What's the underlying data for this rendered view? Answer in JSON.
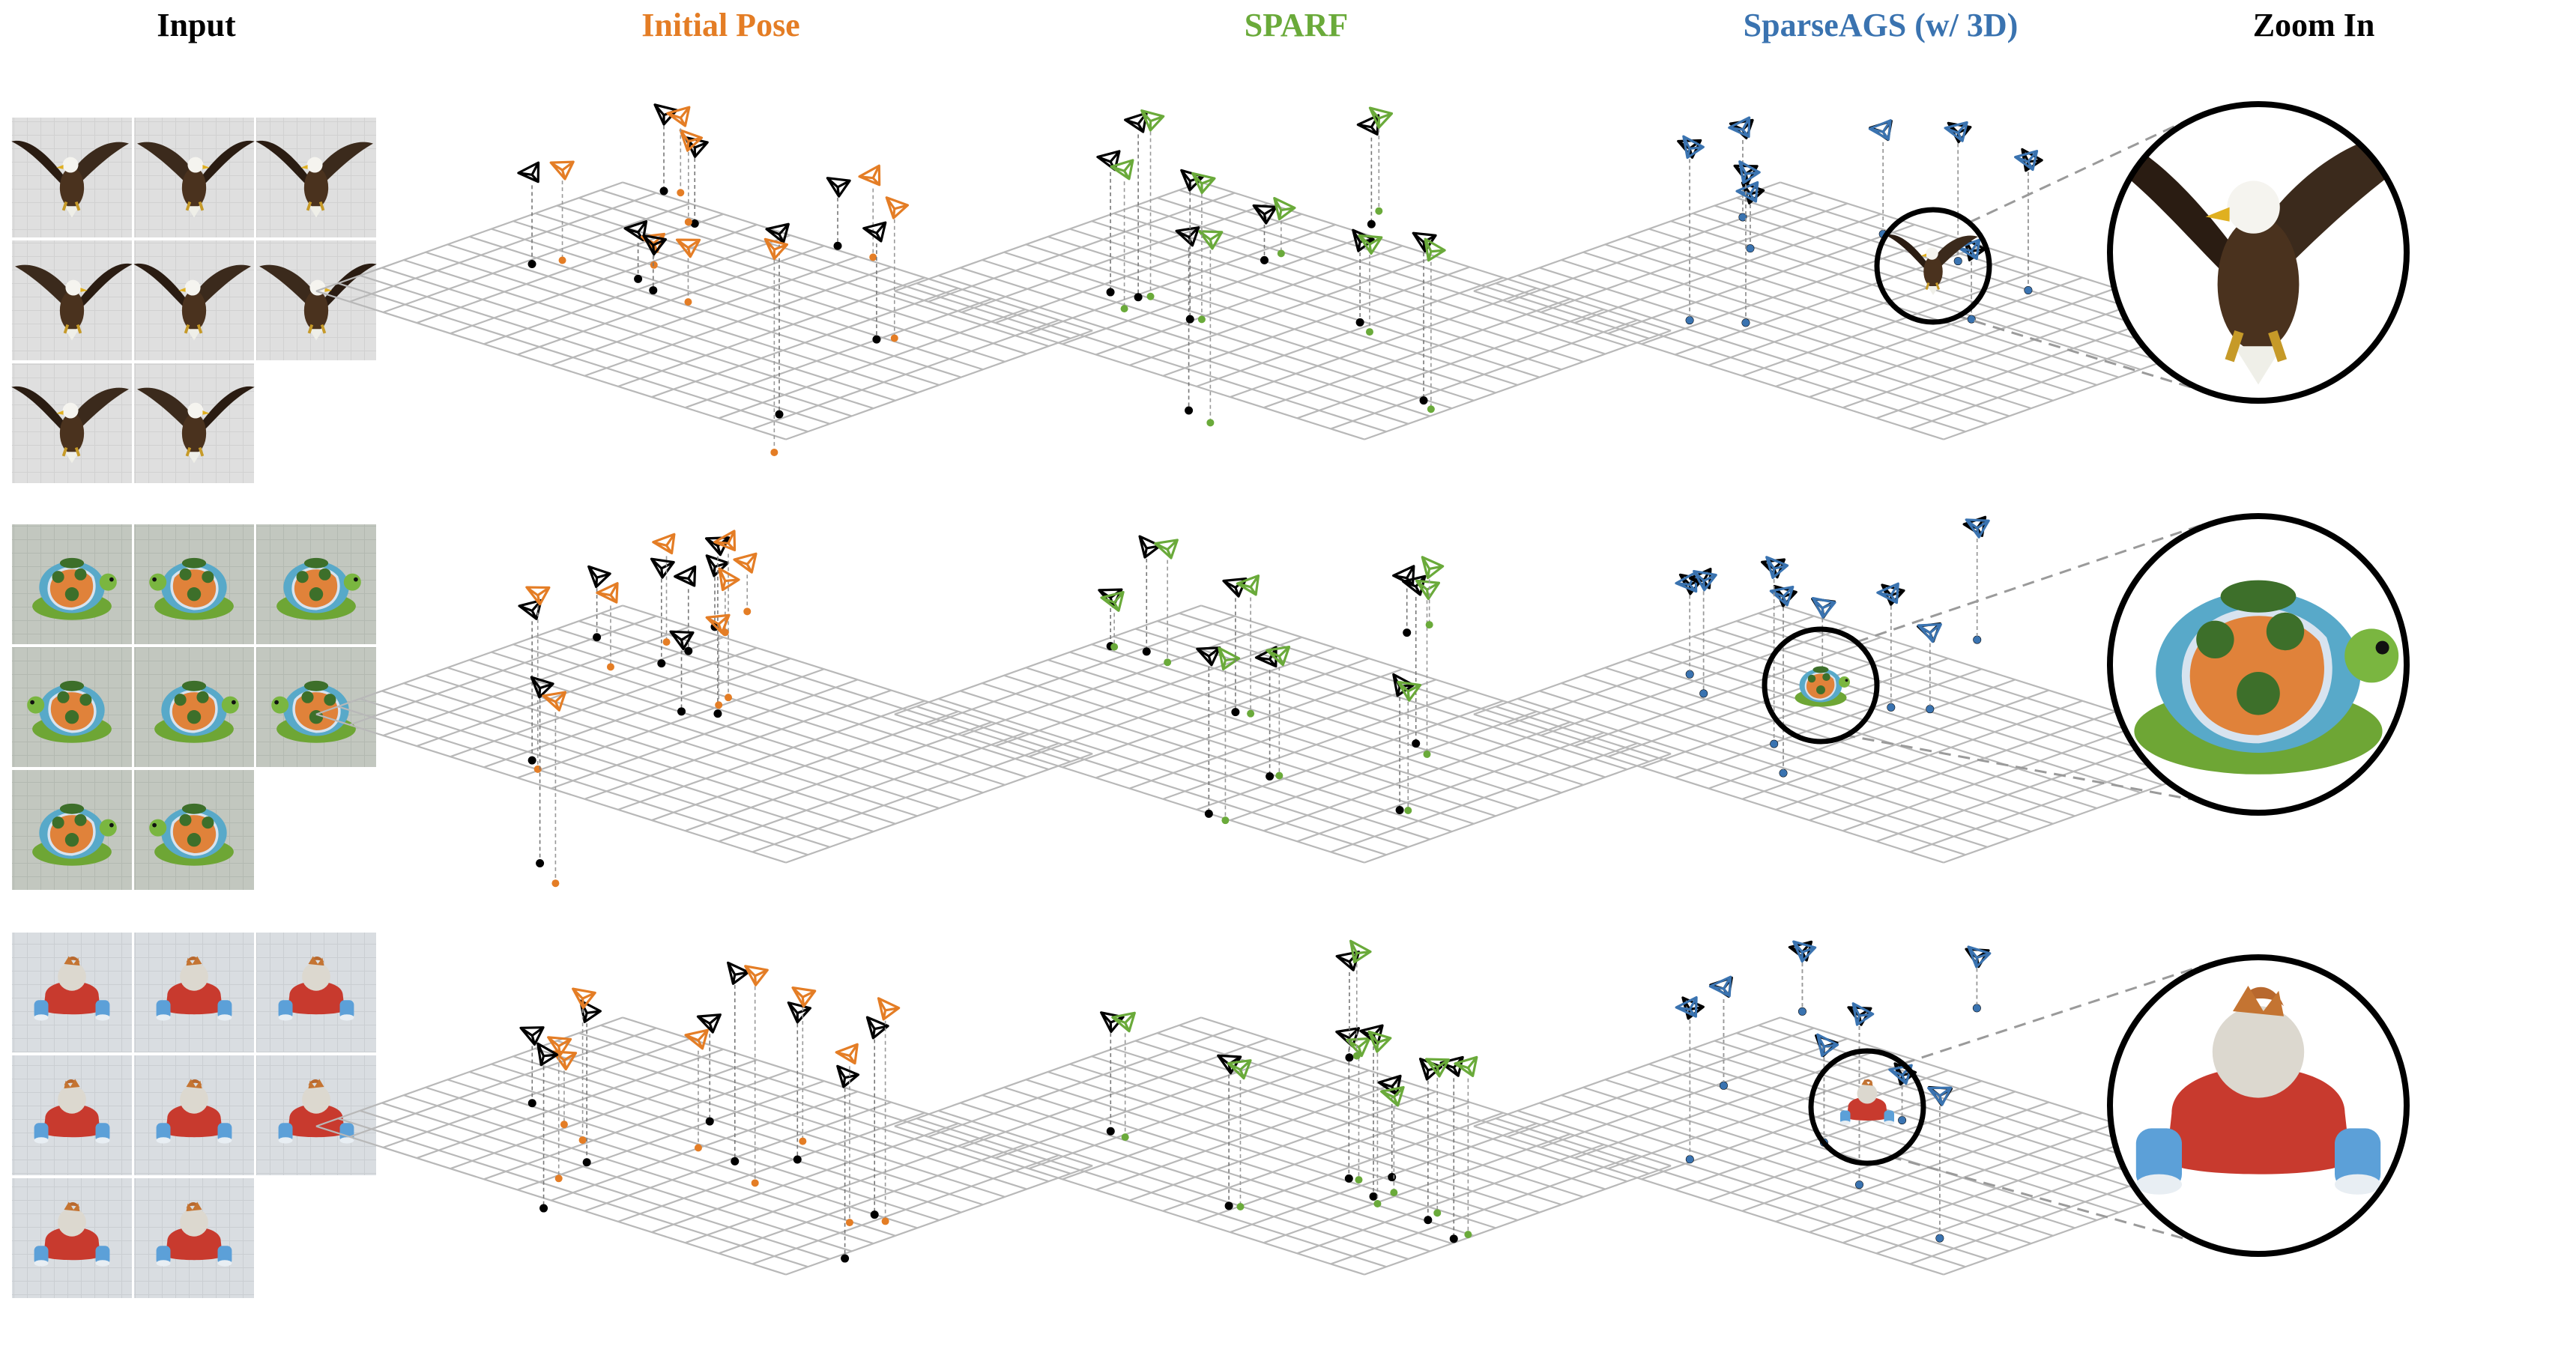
{
  "headers": [
    {
      "key": "input",
      "label": "Input",
      "color": "#000000"
    },
    {
      "key": "initial",
      "label": "Initial Pose",
      "color": "#e47d25"
    },
    {
      "key": "sparf",
      "label": "SPARF",
      "color": "#6aaa3a"
    },
    {
      "key": "sparseags",
      "label": "SparseAGS (w/ 3D)",
      "color": "#3a73b0"
    },
    {
      "key": "zoom",
      "label": "Zoom In",
      "color": "#000000"
    }
  ],
  "colors": {
    "ground_truth": "#000000",
    "initial_pose": "#e47d25",
    "sparf": "#6aaa3a",
    "sparseags": "#3a73b0",
    "grid": "#b8b8b8",
    "leader": "#9a9a9a"
  },
  "rows": [
    {
      "object": "eagle",
      "input_views": 8
    },
    {
      "object": "turtle",
      "input_views": 8
    },
    {
      "object": "chicken-car",
      "input_views": 8
    }
  ]
}
